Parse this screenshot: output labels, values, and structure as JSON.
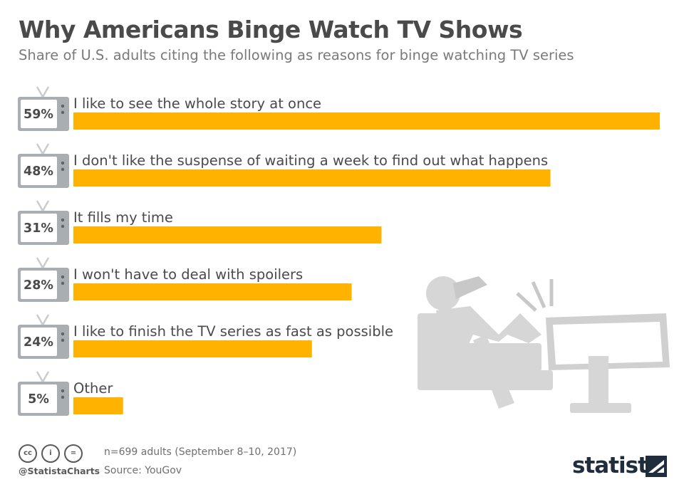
{
  "header": {
    "title": "Why Americans Binge Watch TV Shows",
    "subtitle": "Share of U.S. adults citing the following as reasons for binge watching TV series"
  },
  "chart_data": {
    "type": "bar",
    "orientation": "horizontal",
    "categories": [
      "I like to see the whole story at once",
      "I don't like the suspense of waiting a week to find out what happens",
      "It fills my time",
      "I won't have to deal with spoilers",
      "I like to finish the TV series as fast as possible",
      "Other"
    ],
    "values": [
      59,
      48,
      31,
      28,
      24,
      5
    ],
    "value_labels": [
      "59%",
      "48%",
      "31%",
      "28%",
      "24%",
      "5%"
    ],
    "bar_color": "#FFB300",
    "grid": false
  },
  "footer": {
    "note": "n=699 adults (September 8–10, 2017)",
    "source": "Source: YouGov",
    "handle": "@StatistaCharts",
    "brand": "statista"
  },
  "icons": [
    "tv-icon",
    "binge-watcher-illustration",
    "cc-icon",
    "attribution-icon",
    "no-derivatives-icon",
    "statista-logo-icon"
  ]
}
